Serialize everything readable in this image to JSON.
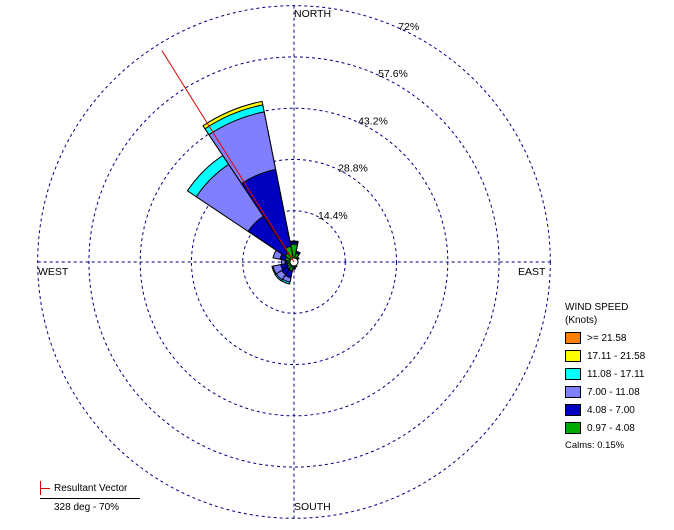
{
  "chart_data": {
    "type": "wind-rose",
    "directions": {
      "north": "NORTH",
      "south": "SOUTH",
      "east": "EAST",
      "west": "WEST"
    },
    "rings_percent": [
      14.4,
      28.8,
      43.2,
      57.6,
      72
    ],
    "ring_labels": [
      "14.4%",
      "28.8%",
      "43.2%",
      "57.6%",
      "72%"
    ],
    "sector_width_deg": 22.5,
    "legend_title_line1": "WIND SPEED",
    "legend_title_line2": "(Knots)",
    "bins": [
      {
        "label": ">= 21.58",
        "color": "#ff8000"
      },
      {
        "label": "17.11 - 21.58",
        "color": "#ffff00"
      },
      {
        "label": "11.08 - 17.11",
        "color": "#00ffff"
      },
      {
        "label": "7.00 - 11.08",
        "color": "#8080ff"
      },
      {
        "label": "4.08 - 7.00",
        "color": "#0000c0"
      },
      {
        "label": "0.97 - 4.08",
        "color": "#00aa00"
      }
    ],
    "stack_order": [
      "0.97 - 4.08",
      "4.08 - 7.00",
      "7.00 - 11.08",
      "11.08 - 17.11",
      "17.11 - 21.58",
      ">= 21.58"
    ],
    "sectors": [
      {
        "dir_deg": 0,
        "cumulative_percent": [
          5.0,
          5.6,
          5.8,
          5.9
        ]
      },
      {
        "dir_deg": 22.5,
        "cumulative_percent": [
          2.5,
          3.0,
          3.1
        ]
      },
      {
        "dir_deg": 45,
        "cumulative_percent": [
          1.5,
          1.7
        ]
      },
      {
        "dir_deg": 67.5,
        "cumulative_percent": [
          1.0
        ]
      },
      {
        "dir_deg": 90,
        "cumulative_percent": [
          0.9
        ]
      },
      {
        "dir_deg": 112.5,
        "cumulative_percent": [
          0.9
        ]
      },
      {
        "dir_deg": 135,
        "cumulative_percent": [
          1.0
        ]
      },
      {
        "dir_deg": 157.5,
        "cumulative_percent": [
          1.5
        ]
      },
      {
        "dir_deg": 180,
        "cumulative_percent": [
          1.5,
          2.0
        ]
      },
      {
        "dir_deg": 202.5,
        "cumulative_percent": [
          2.6,
          4.5,
          5.8,
          6.3
        ]
      },
      {
        "dir_deg": 225,
        "cumulative_percent": [
          2.3,
          4.2,
          6.0,
          6.4
        ]
      },
      {
        "dir_deg": 247.5,
        "cumulative_percent": [
          2.0,
          3.8,
          6.0,
          6.3
        ]
      },
      {
        "dir_deg": 270,
        "cumulative_percent": [
          2.0,
          2.5,
          3.5
        ]
      },
      {
        "dir_deg": 292.5,
        "cumulative_percent": [
          2.5,
          4.0,
          6.0
        ]
      },
      {
        "dir_deg": 315,
        "cumulative_percent": [
          3.0,
          15.5,
          33.0,
          36.0
        ]
      },
      {
        "dir_deg": 337.5,
        "cumulative_percent": [
          4.5,
          26.5,
          43.0,
          45.0,
          46.0
        ]
      }
    ],
    "calms_label": "Calms: 0.15%",
    "resultant_vector": {
      "direction_deg": 328,
      "percent": 70
    },
    "resultant_title": "Resultant Vector",
    "resultant_value_label": "328 deg - 70%",
    "grid_color": "#000080",
    "vector_color": "#e00000"
  }
}
